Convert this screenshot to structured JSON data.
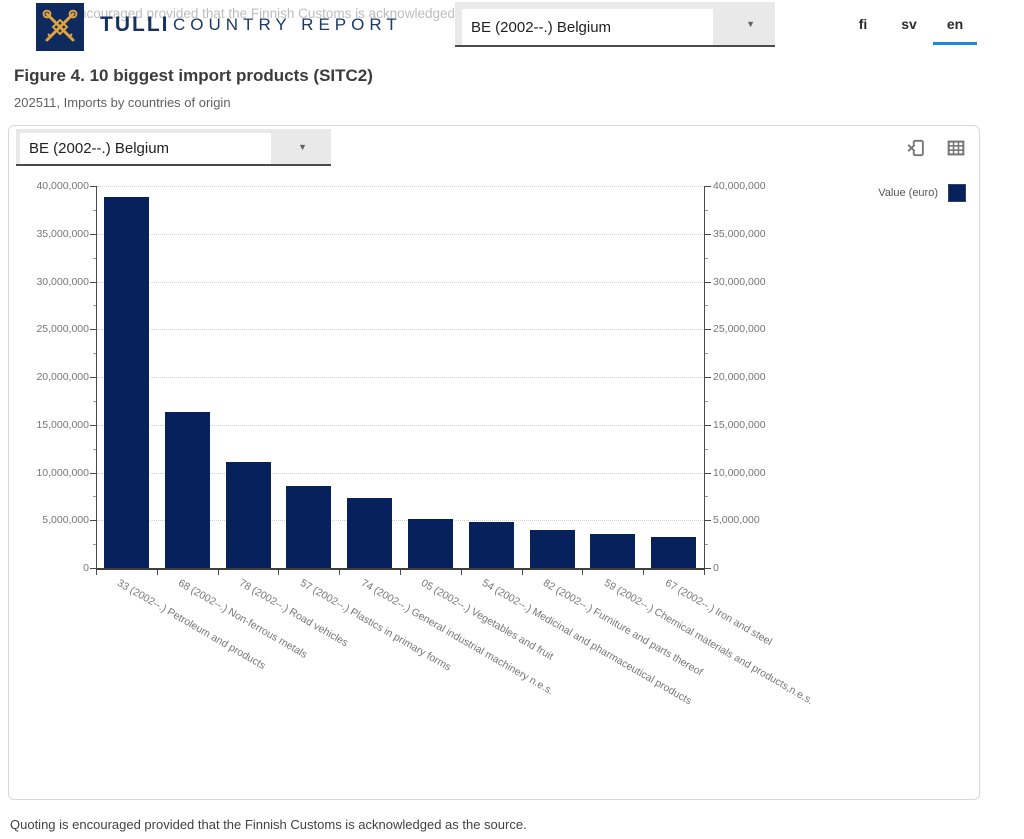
{
  "header": {
    "brand": "TULLI",
    "app_title": "COUNTRY REPORT",
    "watermark_fragment": "is encouraged provided that the Finnish Customs is acknowledged as th",
    "country_select": {
      "value": "BE (2002--.) Belgium"
    },
    "languages": [
      {
        "label": "fi",
        "active": false
      },
      {
        "label": "sv",
        "active": false
      },
      {
        "label": "en",
        "active": true
      }
    ]
  },
  "figure": {
    "title": "Figure 4. 10 biggest import products (SITC2)",
    "subtitle": "202511, Imports by countries of origin"
  },
  "panel": {
    "country_select": {
      "value": "BE (2002--.) Belgium"
    },
    "legend": {
      "label": "Value (euro)",
      "color": "#06215c"
    }
  },
  "chart_data": {
    "type": "bar",
    "title": "",
    "xlabel": "",
    "ylabel": "",
    "categories": [
      "33 (2002--.) Petroleum and products",
      "68 (2002--.) Non-ferrous metals",
      "78 (2002--.) Road vehicles",
      "57 (2002--.) Plastics in primary forms",
      "74 (2002--.) General industrial machinery n.e.s.",
      "05 (2002--.) Vegetables and fruit",
      "54 (2002--.) Medicinal and pharmaceutical products",
      "82 (2002--.) Furniture and parts thereof",
      "59 (2002--.) Chemical materials and products,n.e.s.",
      "67 (2002--.) Iron and steel"
    ],
    "values": [
      38800000,
      16300000,
      11050000,
      8550000,
      7350000,
      5100000,
      4800000,
      4000000,
      3600000,
      3250000
    ],
    "series": [
      {
        "name": "Value (euro)",
        "values": [
          38800000,
          16300000,
          11050000,
          8550000,
          7350000,
          5100000,
          4800000,
          4000000,
          3600000,
          3250000
        ]
      }
    ],
    "ylim": [
      0,
      40000000
    ],
    "ytick_step": 5000000,
    "ytick_labels": [
      "0",
      "5,000,000",
      "10,000,000",
      "15,000,000",
      "20,000,000",
      "25,000,000",
      "30,000,000",
      "35,000,000",
      "40,000,000"
    ],
    "grid": "horizontal-dotted",
    "dual_y_axis": true,
    "legend_position": "top-right",
    "bar_color": "#06215c",
    "x_label_rotation_deg": 30
  },
  "footer": {
    "note": "Quoting is encouraged provided that the Finnish Customs is acknowledged as the source."
  }
}
